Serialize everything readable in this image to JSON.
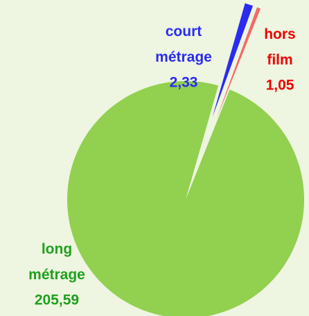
{
  "chart_data": {
    "type": "pie",
    "categories": [
      "long métrage",
      "court métrage",
      "hors film"
    ],
    "values": [
      205.59,
      2.33,
      1.05
    ],
    "value_labels": [
      "205,59",
      "2,33",
      "1,05"
    ],
    "colors": [
      "#92d050",
      "#2b2bf0",
      "#f06a6a"
    ],
    "label_colors": [
      "#1fa01f",
      "#2b2bf0",
      "#ee0000"
    ]
  }
}
